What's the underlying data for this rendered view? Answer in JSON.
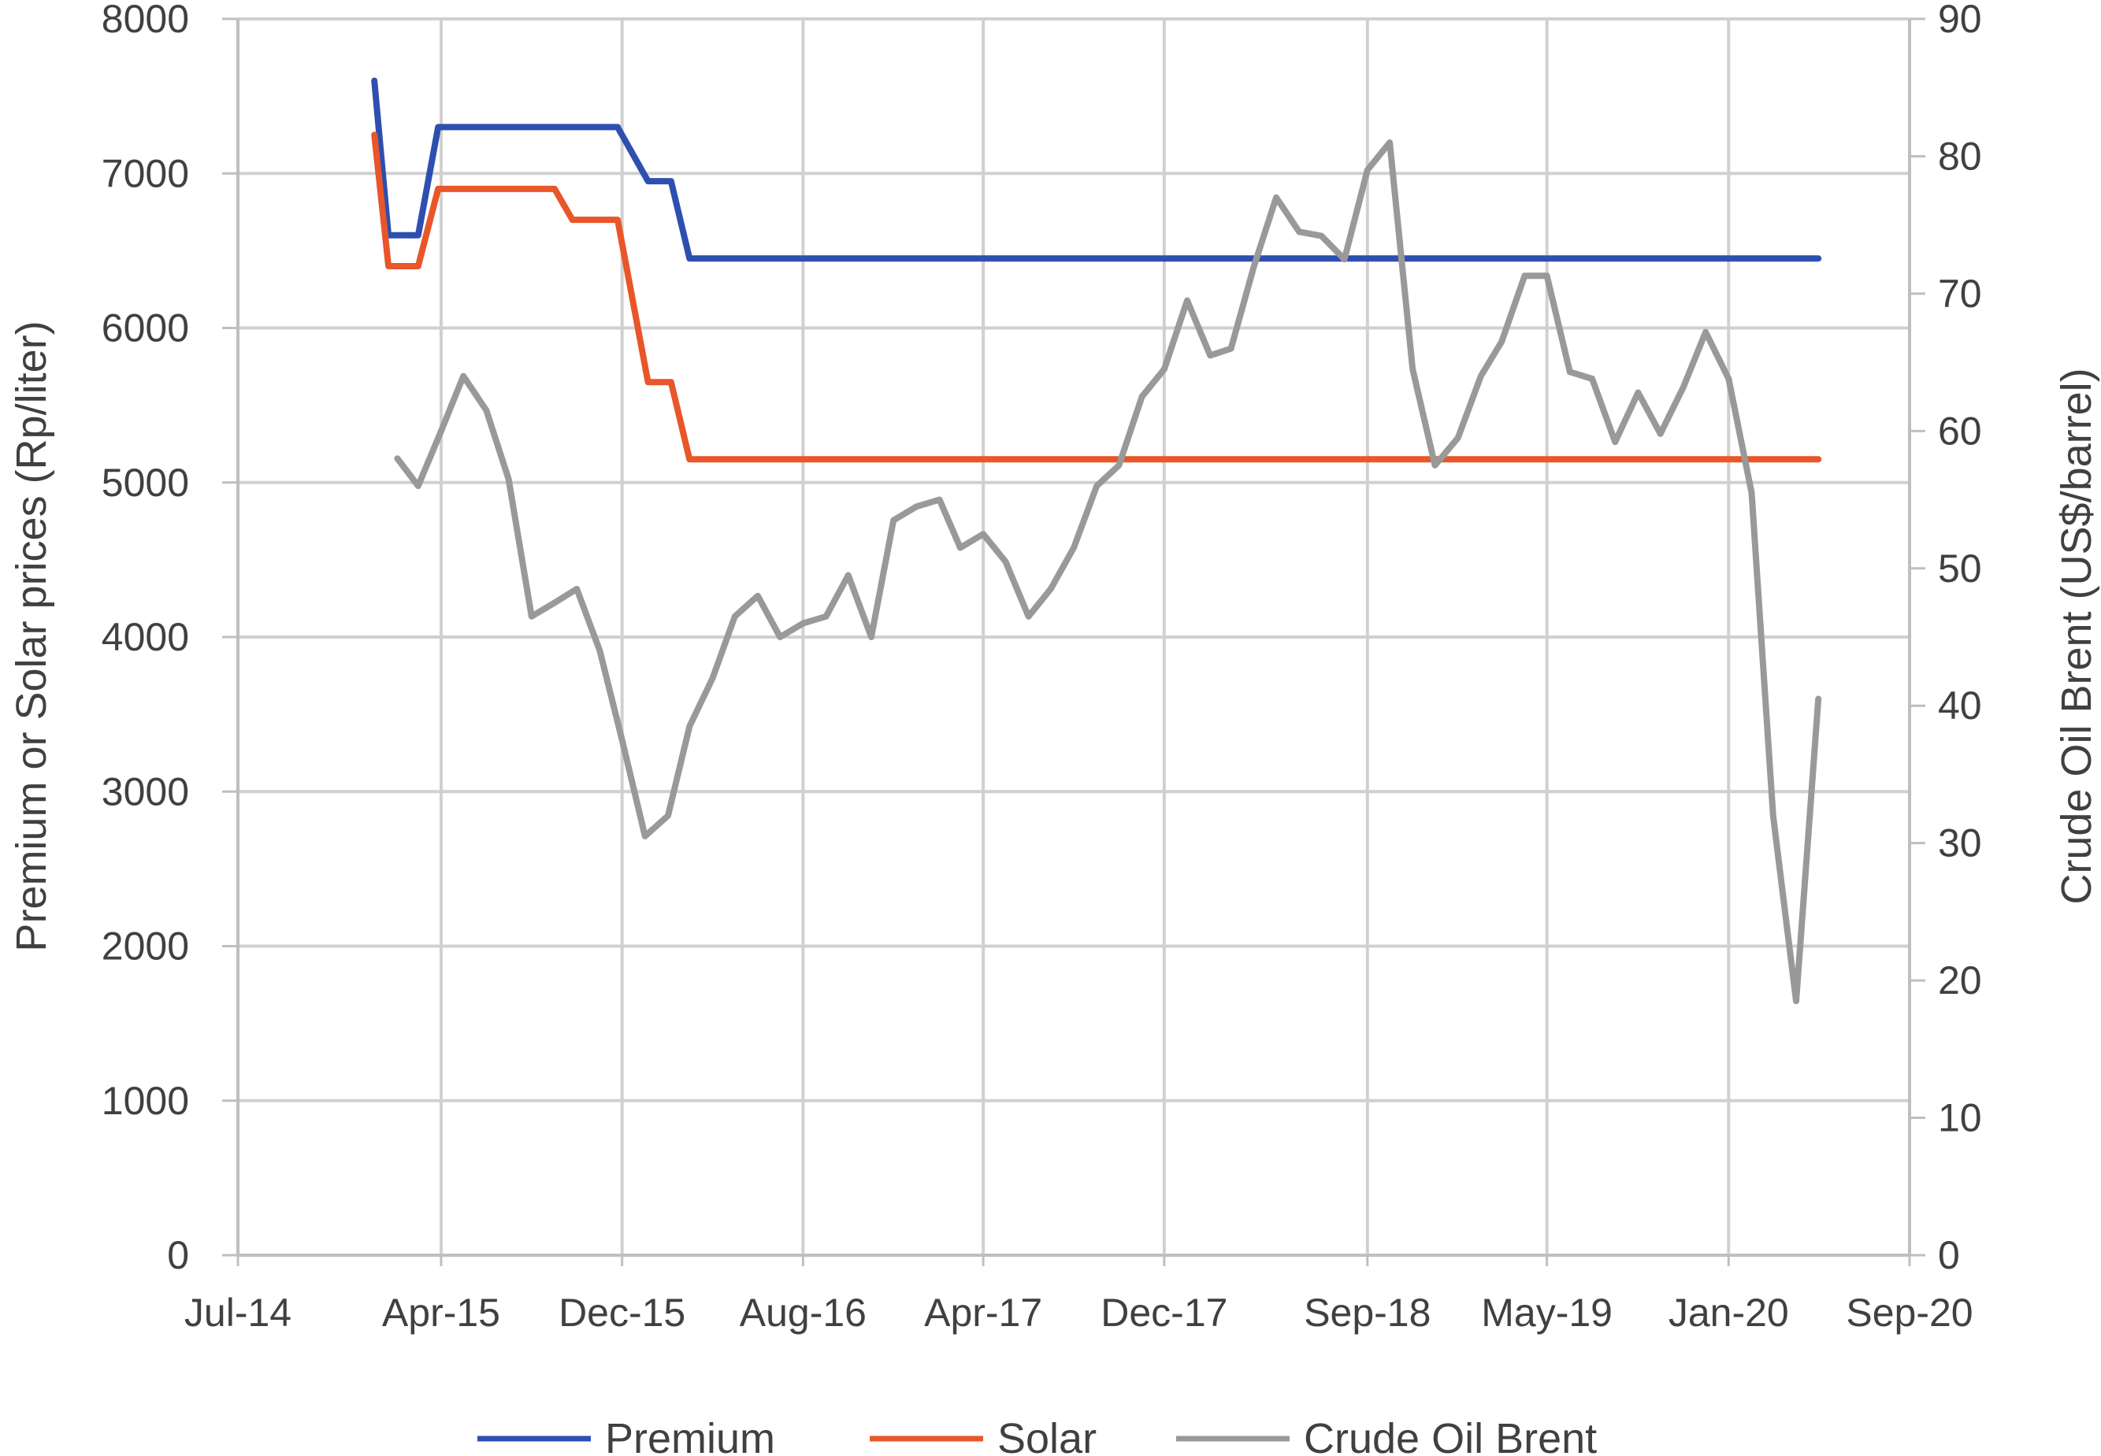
{
  "chart_data": {
    "type": "line",
    "title": "",
    "ylabel": "Premium or Solar prices (Rp/liter)",
    "y2label": "Crude Oil Brent (US$/barrel)",
    "ylim": [
      0,
      8000
    ],
    "y2lim": [
      0,
      90
    ],
    "y_ticks": [
      "0",
      "1000",
      "2000",
      "3000",
      "4000",
      "5000",
      "6000",
      "7000",
      "8000"
    ],
    "y2_ticks": [
      "0",
      "10",
      "20",
      "30",
      "40",
      "50",
      "60",
      "70",
      "80",
      "90"
    ],
    "x_ticks": [
      "Jul-14",
      "Apr-15",
      "Dec-15",
      "Aug-16",
      "Apr-17",
      "Dec-17",
      "Sep-18",
      "May-19",
      "Jan-20",
      "Sep-20"
    ],
    "grid": true,
    "legend_position": "bottom",
    "series": [
      {
        "name": "Premium",
        "axis": "left",
        "color": "#2E4FB0",
        "x": [
          "2015-01-01",
          "2015-01-20",
          "2015-03-01",
          "2015-03-28",
          "2015-04-20",
          "2015-11-01",
          "2015-11-25",
          "2016-01-05",
          "2016-02-05",
          "2016-03-01",
          "2020-05-01"
        ],
        "y": [
          7600,
          6600,
          6600,
          7300,
          7300,
          7300,
          7300,
          6950,
          6950,
          6450,
          6450
        ]
      },
      {
        "name": "Solar",
        "axis": "left",
        "color": "#E8562A",
        "x": [
          "2015-01-01",
          "2015-01-20",
          "2015-03-01",
          "2015-03-28",
          "2015-04-20",
          "2015-08-01",
          "2015-09-01",
          "2015-09-25",
          "2015-11-25",
          "2016-01-05",
          "2016-02-05",
          "2016-03-01",
          "2020-05-01"
        ],
        "y": [
          7250,
          6400,
          6400,
          6900,
          6900,
          6900,
          6900,
          6700,
          6700,
          5650,
          5650,
          5150,
          5150
        ]
      },
      {
        "name": "Crude Oil Brent",
        "axis": "right",
        "color": "#999999",
        "x": [
          "2015-02-01",
          "2015-03-01",
          "2015-04-01",
          "2015-05-01",
          "2015-06-01",
          "2015-07-01",
          "2015-08-01",
          "2015-09-01",
          "2015-10-01",
          "2015-11-01",
          "2015-12-01",
          "2016-01-01",
          "2016-02-01",
          "2016-03-01",
          "2016-04-01",
          "2016-05-01",
          "2016-06-01",
          "2016-07-01",
          "2016-08-01",
          "2016-09-01",
          "2016-10-01",
          "2016-11-01",
          "2016-12-01",
          "2017-01-01",
          "2017-02-01",
          "2017-03-01",
          "2017-04-01",
          "2017-05-01",
          "2017-06-01",
          "2017-07-01",
          "2017-08-01",
          "2017-09-01",
          "2017-10-01",
          "2017-11-01",
          "2017-12-01",
          "2018-01-01",
          "2018-02-01",
          "2018-03-01",
          "2018-04-01",
          "2018-05-01",
          "2018-06-01",
          "2018-07-01",
          "2018-08-01",
          "2018-09-01",
          "2018-10-01",
          "2018-11-01",
          "2018-12-01",
          "2019-01-01",
          "2019-02-01",
          "2019-03-01",
          "2019-04-01",
          "2019-05-01",
          "2019-06-01",
          "2019-07-01",
          "2019-08-01",
          "2019-09-01",
          "2019-10-01",
          "2019-11-01",
          "2019-12-01",
          "2020-01-01",
          "2020-02-01",
          "2020-03-01",
          "2020-04-01",
          "2020-05-01"
        ],
        "y": [
          58,
          56,
          60,
          64,
          61.5,
          56.5,
          46.5,
          47.5,
          48.5,
          44,
          37.5,
          30.5,
          32,
          38.5,
          42,
          46.5,
          48,
          45,
          46,
          46.5,
          49.5,
          45,
          53.5,
          54.5,
          55,
          51.5,
          52.5,
          50.5,
          46.5,
          48.5,
          51.5,
          56,
          57.5,
          62.5,
          64.5,
          69.5,
          65.5,
          66,
          72,
          77,
          74.5,
          74.2,
          72.5,
          79,
          81,
          64.5,
          57.5,
          59.5,
          64,
          66.5,
          71.3,
          71.3,
          64.3,
          63.8,
          59.2,
          62.8,
          59.8,
          63.2,
          67.2,
          63.8,
          55.5,
          32,
          18.5,
          40.5
        ]
      }
    ]
  }
}
